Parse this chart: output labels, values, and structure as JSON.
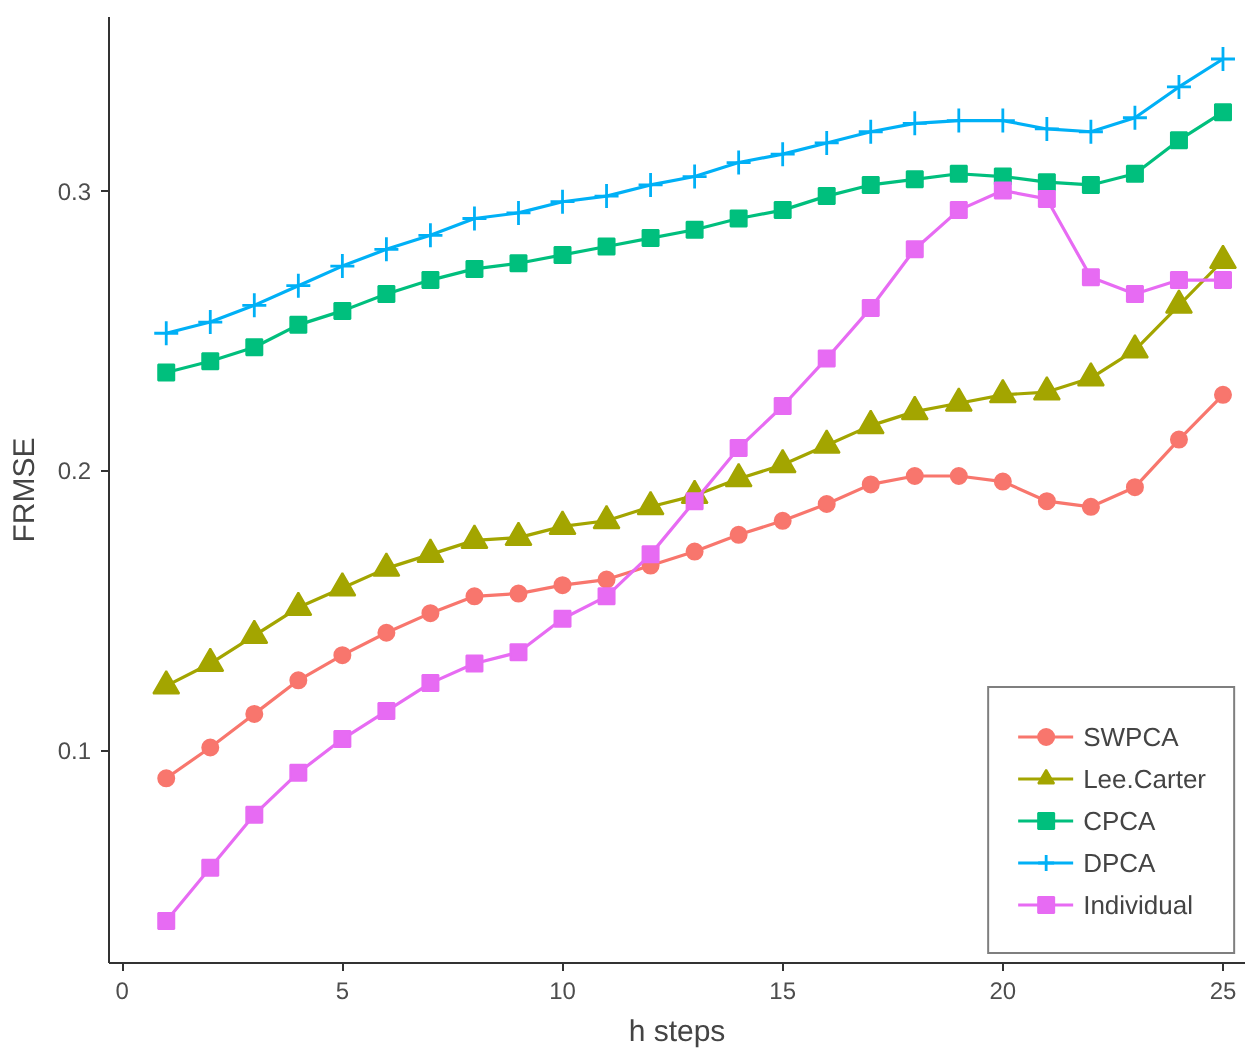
{
  "chart_data": {
    "type": "line",
    "xlabel": "h steps",
    "ylabel": "FRMSE",
    "x": [
      1,
      2,
      3,
      4,
      5,
      6,
      7,
      8,
      9,
      10,
      11,
      12,
      13,
      14,
      15,
      16,
      17,
      18,
      19,
      20,
      21,
      22,
      23,
      24,
      25
    ],
    "xlim": [
      -0.3,
      25.5
    ],
    "xticks": [
      0,
      5,
      10,
      15,
      20,
      25
    ],
    "ylim": [
      0.024,
      0.362
    ],
    "yticks": [
      0.1,
      0.2,
      0.3
    ],
    "grid": false,
    "legend": "bottom right",
    "series": [
      {
        "name": "SWPCA",
        "color": "#f8766d",
        "marker": "circle",
        "values": [
          0.09,
          0.101,
          0.113,
          0.125,
          0.134,
          0.142,
          0.149,
          0.155,
          0.156,
          0.159,
          0.161,
          0.166,
          0.171,
          0.177,
          0.182,
          0.188,
          0.195,
          0.198,
          0.198,
          0.196,
          0.189,
          0.187,
          0.194,
          0.211,
          0.227
        ]
      },
      {
        "name": "Lee.Carter",
        "color": "#a3a500",
        "marker": "triangle",
        "values": [
          0.123,
          0.131,
          0.141,
          0.151,
          0.158,
          0.165,
          0.17,
          0.175,
          0.176,
          0.18,
          0.182,
          0.187,
          0.191,
          0.197,
          0.202,
          0.209,
          0.216,
          0.221,
          0.224,
          0.227,
          0.228,
          0.233,
          0.243,
          0.259,
          0.275
        ]
      },
      {
        "name": "CPCA",
        "color": "#00bf7d",
        "marker": "square",
        "values": [
          0.235,
          0.239,
          0.244,
          0.252,
          0.257,
          0.263,
          0.268,
          0.272,
          0.274,
          0.277,
          0.28,
          0.283,
          0.286,
          0.29,
          0.293,
          0.298,
          0.302,
          0.304,
          0.306,
          0.305,
          0.303,
          0.302,
          0.306,
          0.318,
          0.328
        ]
      },
      {
        "name": "DPCA",
        "color": "#00b0f6",
        "marker": "cross",
        "values": [
          0.249,
          0.253,
          0.259,
          0.266,
          0.273,
          0.279,
          0.284,
          0.29,
          0.292,
          0.296,
          0.298,
          0.302,
          0.305,
          0.31,
          0.313,
          0.317,
          0.321,
          0.324,
          0.325,
          0.325,
          0.322,
          0.321,
          0.326,
          0.337,
          0.347
        ]
      },
      {
        "name": "Individual",
        "color": "#e76bf3",
        "marker": "square",
        "values": [
          0.039,
          0.058,
          0.077,
          0.092,
          0.104,
          0.114,
          0.124,
          0.131,
          0.135,
          0.147,
          0.155,
          0.17,
          0.189,
          0.208,
          0.223,
          0.24,
          0.258,
          0.279,
          0.293,
          0.3,
          0.297,
          0.269,
          0.263,
          0.268,
          0.268
        ]
      }
    ]
  }
}
